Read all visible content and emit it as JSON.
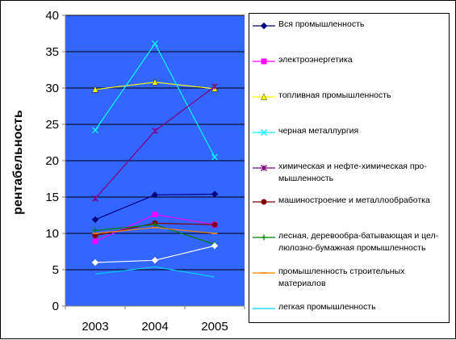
{
  "chart_data": {
    "type": "line",
    "ylabel": "рентабельность",
    "xlabel": "",
    "categories": [
      "2003",
      "2004",
      "2005"
    ],
    "ylim": [
      0,
      40
    ],
    "yticks": [
      "0",
      "5",
      "10",
      "15",
      "20",
      "25",
      "30",
      "35",
      "40"
    ],
    "grid": true,
    "legend_position": "right",
    "plot_background": "#3366FF",
    "series": [
      {
        "name": "Вся промышленность",
        "values": [
          11.9,
          15.3,
          15.4
        ],
        "color": "#000080",
        "marker": "diamond"
      },
      {
        "name": "электроэнергетика",
        "values": [
          8.9,
          12.6,
          11.2
        ],
        "color": "#FF00FF",
        "marker": "square"
      },
      {
        "name": "топливная промышленность",
        "values": [
          29.8,
          30.8,
          29.9
        ],
        "color": "#FFFF00",
        "marker": "triangle"
      },
      {
        "name": "черная металлургия",
        "values": [
          24.2,
          36.1,
          20.5
        ],
        "color": "#00FFFF",
        "marker": "x"
      },
      {
        "name": "химическая и нефте-химическая про-мышленность",
        "values": [
          14.8,
          24.1,
          30.2
        ],
        "color": "#800080",
        "marker": "star"
      },
      {
        "name": "машиностроение и металлообработка",
        "values": [
          9.7,
          11.4,
          11.2
        ],
        "color": "#800000",
        "marker": "circle"
      },
      {
        "name": "лесная, деревообра-батывающая и цел-люлозно-бумажная промышленность",
        "values": [
          10.4,
          11.2,
          8.5
        ],
        "color": "#008000",
        "marker": "plus"
      },
      {
        "name": "промышленность строительных материалов",
        "values": [
          10.0,
          10.8,
          10.0
        ],
        "color": "#FF8000",
        "marker": "dash"
      },
      {
        "name": "легкая промышленность",
        "values": [
          4.4,
          5.4,
          4.0
        ],
        "color": "#00CCFF",
        "marker": "none"
      },
      {
        "name": "",
        "values": [
          6.0,
          6.3,
          8.3
        ],
        "color": "#FFFFFF",
        "marker": "diamond"
      }
    ]
  }
}
